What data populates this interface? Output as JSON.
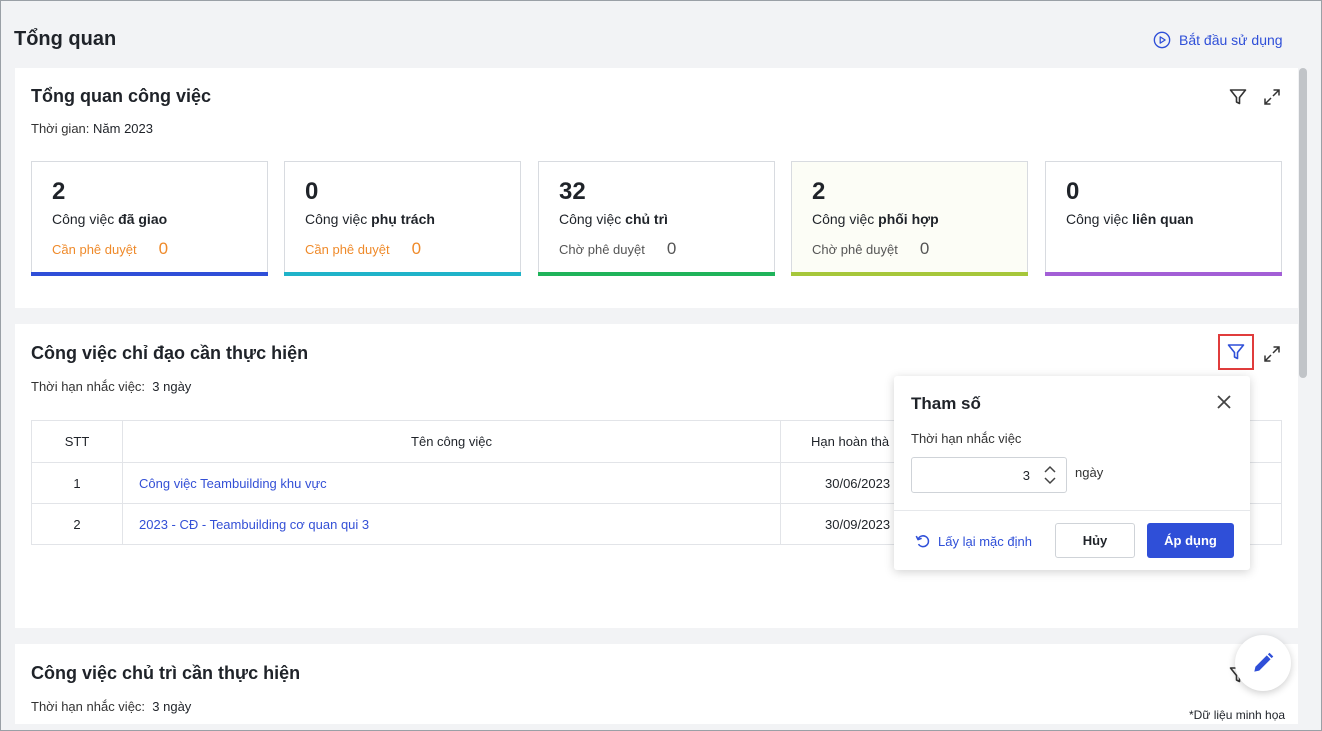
{
  "page": {
    "title": "Tổng quan",
    "start_label": "Bắt đầu sử dụng"
  },
  "overview": {
    "title": "Tổng quan công việc",
    "time_label": "Thời gian:",
    "time_value": "Năm 2023",
    "stats": [
      {
        "value": "2",
        "label_prefix": "Công việc ",
        "label_bold": "đã giao",
        "pending_label": "Cần phê duyệt",
        "pending_value": "0",
        "bar_color": "#2f4fd8",
        "pending_color": "orange"
      },
      {
        "value": "0",
        "label_prefix": "Công việc ",
        "label_bold": "phụ trách",
        "pending_label": "Cần phê duyệt",
        "pending_value": "0",
        "bar_color": "#1fb3c9",
        "pending_color": "orange"
      },
      {
        "value": "32",
        "label_prefix": "Công việc ",
        "label_bold": "chủ trì",
        "pending_label": "Chờ phê duyệt",
        "pending_value": "0",
        "bar_color": "#1fb35a",
        "pending_color": "gray"
      },
      {
        "value": "2",
        "label_prefix": "Công việc ",
        "label_bold": "phối hợp",
        "pending_label": "Chờ phê duyệt",
        "pending_value": "0",
        "bar_color": "#a6c73a",
        "pending_color": "gray"
      },
      {
        "value": "0",
        "label_prefix": "Công việc ",
        "label_bold": "liên quan",
        "pending_label": "",
        "pending_value": "",
        "bar_color": "#a35fd6",
        "pending_color": "gray"
      }
    ]
  },
  "directed": {
    "title": "Công việc chỉ đạo cần thực hiện",
    "reminder_label": "Thời hạn nhắc việc:",
    "reminder_value": "3 ngày",
    "table": {
      "headers": {
        "stt": "STT",
        "name": "Tên công việc",
        "deadline": "Hạn hoàn thà"
      },
      "rows": [
        {
          "stt": "1",
          "name": "Công việc Teambuilding khu vực",
          "deadline": "30/06/2023"
        },
        {
          "stt": "2",
          "name": "2023 - CĐ - Teambuilding cơ quan qui 3",
          "deadline": "30/09/2023"
        }
      ]
    }
  },
  "popup": {
    "title": "Tham số",
    "field_label": "Thời hạn nhắc việc",
    "field_value": "3",
    "unit": "ngày",
    "reset_label": "Lấy lại mặc định",
    "cancel_label": "Hủy",
    "apply_label": "Áp dụng"
  },
  "host": {
    "title": "Công việc chủ trì cần thực hiện",
    "reminder_label": "Thời hạn nhắc việc:",
    "reminder_value": "3 ngày"
  },
  "footer": {
    "note": "*Dữ liệu minh họa"
  },
  "colors": {
    "accent": "#2f4fd8",
    "highlight_border": "#e03c3c"
  }
}
